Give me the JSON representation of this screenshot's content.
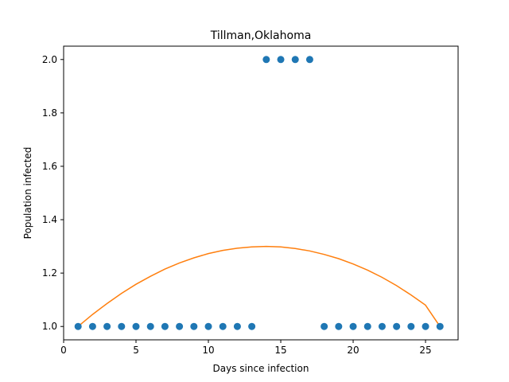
{
  "chart_data": {
    "type": "scatter",
    "title": "Tillman,Oklahoma",
    "xlabel": "Days since infection",
    "ylabel": "Population infected",
    "xlim": [
      0,
      27.25
    ],
    "ylim": [
      0.95,
      2.05
    ],
    "xticks": [
      0,
      5,
      10,
      15,
      20,
      25
    ],
    "yticks": [
      1.0,
      1.2,
      1.4,
      1.6,
      1.8,
      2.0
    ],
    "ytick_labels": [
      "1.0",
      "1.2",
      "1.4",
      "1.6",
      "1.8",
      "2.0"
    ],
    "grid": false,
    "series": [
      {
        "kind": "scatter",
        "color": "#1f77b4",
        "x": [
          1,
          2,
          3,
          4,
          5,
          6,
          7,
          8,
          9,
          10,
          11,
          12,
          13,
          14,
          15,
          16,
          17,
          18,
          19,
          20,
          21,
          22,
          23,
          24,
          25,
          26
        ],
        "y": [
          1,
          1,
          1,
          1,
          1,
          1,
          1,
          1,
          1,
          1,
          1,
          1,
          1,
          2,
          2,
          2,
          2,
          1,
          1,
          1,
          1,
          1,
          1,
          1,
          1,
          1
        ]
      },
      {
        "kind": "line",
        "color": "#ff7f0e",
        "x": [
          1,
          2,
          3,
          4,
          5,
          6,
          7,
          8,
          9,
          10,
          11,
          12,
          13,
          14,
          15,
          16,
          17,
          18,
          19,
          20,
          21,
          22,
          23,
          24,
          25,
          26
        ],
        "y": [
          1.0,
          1.045,
          1.086,
          1.124,
          1.158,
          1.188,
          1.215,
          1.238,
          1.257,
          1.273,
          1.285,
          1.293,
          1.298,
          1.3,
          1.298,
          1.292,
          1.283,
          1.27,
          1.254,
          1.234,
          1.211,
          1.184,
          1.153,
          1.118,
          1.08,
          1.0
        ]
      }
    ]
  }
}
